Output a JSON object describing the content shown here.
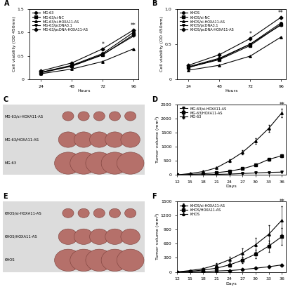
{
  "chart_data": [
    {
      "type": "line",
      "title": "A",
      "x_label": "Hours",
      "y_label": "Cell viability (OD 450nm)",
      "x": [
        24,
        48,
        72,
        96
      ],
      "xlim": [
        15,
        100
      ],
      "xticks": [
        24,
        48,
        72,
        96
      ],
      "ylim": [
        0,
        1.5
      ],
      "yticks": [
        0,
        0.5,
        {
          "value": 1,
          "label": "1.0"
        },
        1.5
      ],
      "legend": "upper left",
      "series": [
        {
          "name": "MG-63",
          "color": "#000000",
          "marker": "circle",
          "values": [
            0.15,
            0.3,
            0.55,
            1.0
          ]
        },
        {
          "name": "MG-63/si-NC",
          "color": "#000000",
          "marker": "square",
          "values": [
            0.14,
            0.28,
            0.52,
            0.95
          ]
        },
        {
          "name": "MG-63/si-HOXA11-AS",
          "color": "#000000",
          "marker": "triangle",
          "values": [
            0.12,
            0.22,
            0.38,
            0.65
          ]
        },
        {
          "name": "MG-63/pcDNA3.1",
          "color": "#000000",
          "marker": "triangle_down",
          "values": [
            0.15,
            0.29,
            0.53,
            0.92
          ]
        },
        {
          "name": "MG-63/pcDNA-HOXA11-AS",
          "color": "#000000",
          "marker": "diamond",
          "values": [
            0.18,
            0.35,
            0.65,
            1.05
          ]
        }
      ],
      "annotations": [
        {
          "text": "*",
          "x": 72,
          "y": 0.68
        },
        {
          "text": "**",
          "x": 96,
          "y": 1.08
        }
      ]
    },
    {
      "type": "line",
      "title": "B",
      "x_label": "Hours",
      "y_label": "Cell viability (OD 450nm)",
      "x": [
        24,
        48,
        72,
        96
      ],
      "xlim": [
        15,
        100
      ],
      "xticks": [
        24,
        48,
        72,
        96
      ],
      "ylim": [
        0,
        1.0
      ],
      "yticks": [
        0,
        0.5,
        {
          "value": 1,
          "label": "1.0"
        }
      ],
      "legend": "upper left",
      "series": [
        {
          "name": "KHOS",
          "color": "#000000",
          "marker": "circle",
          "values": [
            0.18,
            0.3,
            0.5,
            0.8
          ]
        },
        {
          "name": "KHOS/si-NC",
          "color": "#000000",
          "marker": "square",
          "values": [
            0.17,
            0.28,
            0.48,
            0.78
          ]
        },
        {
          "name": "KHOS/si-HOXA11-AS",
          "color": "#000000",
          "marker": "triangle",
          "values": [
            0.13,
            0.2,
            0.33,
            0.6
          ]
        },
        {
          "name": "KHOS/pcDNA3.1",
          "color": "#000000",
          "marker": "triangle_down",
          "values": [
            0.17,
            0.29,
            0.5,
            0.77
          ]
        },
        {
          "name": "KHOS/pcDNA-HOXA11-AS",
          "color": "#000000",
          "marker": "diamond",
          "values": [
            0.2,
            0.35,
            0.58,
            0.88
          ]
        }
      ],
      "annotations": [
        {
          "text": "*",
          "x": 72,
          "y": 0.6
        },
        {
          "text": "**",
          "x": 96,
          "y": 0.9
        }
      ]
    },
    {
      "type": "line",
      "title": "D",
      "x_label": "Days",
      "y_label": "Tumor volume (mm³)",
      "x": [
        12,
        15,
        18,
        21,
        24,
        27,
        30,
        33,
        36
      ],
      "xlim": [
        12,
        37
      ],
      "xticks": [
        12,
        15,
        18,
        21,
        24,
        27,
        30,
        33,
        36
      ],
      "ylim": [
        0,
        2500
      ],
      "yticks": [
        0,
        500,
        1000,
        1500,
        2000,
        2500
      ],
      "legend": "upper left",
      "series": [
        {
          "name": "MG-63/si-HOXA11-AS",
          "color": "#000000",
          "marker": "triangle_down",
          "values": [
            0,
            5,
            10,
            20,
            30,
            50,
            70,
            90,
            100
          ],
          "err": [
            0,
            2,
            3,
            5,
            6,
            8,
            10,
            12,
            15
          ]
        },
        {
          "name": "MG-63/HOXA11-AS",
          "color": "#000000",
          "marker": "square",
          "values": [
            0,
            20,
            40,
            80,
            130,
            220,
            350,
            550,
            680
          ],
          "err": [
            0,
            5,
            8,
            10,
            15,
            20,
            30,
            40,
            50
          ]
        },
        {
          "name": "MG-63",
          "color": "#000000",
          "marker": "triangle",
          "values": [
            0,
            50,
            120,
            250,
            500,
            800,
            1200,
            1650,
            2200
          ],
          "err": [
            0,
            10,
            20,
            30,
            50,
            80,
            100,
            120,
            150
          ]
        }
      ],
      "annotations": [
        {
          "text": "**",
          "x": 36,
          "y": 2380
        }
      ]
    },
    {
      "type": "line",
      "title": "F",
      "x_label": "Days",
      "y_label": "Tumor volume (mm³)",
      "x": [
        12,
        15,
        18,
        21,
        24,
        27,
        30,
        33,
        36
      ],
      "xlim": [
        12,
        37
      ],
      "xticks": [
        12,
        15,
        18,
        21,
        24,
        27,
        30,
        33,
        36
      ],
      "ylim": [
        0,
        1500
      ],
      "yticks": [
        0,
        300,
        600,
        900,
        1200,
        1500
      ],
      "legend": "upper left",
      "series": [
        {
          "name": "KHOS/si-HOXA11-AS",
          "color": "#000000",
          "marker": "diamond",
          "values": [
            0,
            5,
            10,
            20,
            30,
            50,
            80,
            110,
            150
          ],
          "err": [
            0,
            2,
            3,
            5,
            8,
            10,
            15,
            20,
            25
          ]
        },
        {
          "name": "KHOS/HOXA11-AS",
          "color": "#000000",
          "marker": "square",
          "values": [
            0,
            15,
            40,
            80,
            150,
            250,
            380,
            550,
            750
          ],
          "err": [
            0,
            5,
            10,
            20,
            40,
            60,
            90,
            120,
            180
          ]
        },
        {
          "name": "KHOS",
          "color": "#000000",
          "marker": "triangle",
          "values": [
            0,
            30,
            70,
            150,
            260,
            400,
            580,
            800,
            1100
          ],
          "err": [
            0,
            10,
            20,
            40,
            60,
            100,
            150,
            200,
            300
          ]
        }
      ],
      "annotations": [
        {
          "text": "**",
          "x": 36,
          "y": 1420
        }
      ]
    }
  ],
  "photos": [
    {
      "title": "C",
      "rows": [
        "MG-63/si-HOXA11-AS",
        "MG-63/HOXA11-AS",
        "MG-63"
      ]
    },
    {
      "title": "E",
      "rows": [
        "KHOS/si-HOXA11-AS",
        "KHOS/HOXA11-AS",
        "KHOS"
      ]
    }
  ]
}
